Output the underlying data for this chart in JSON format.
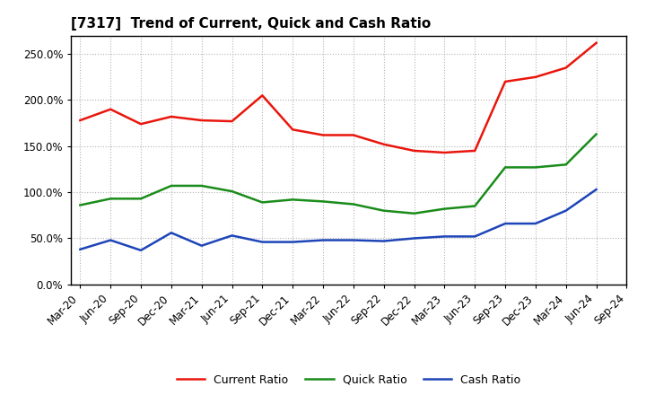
{
  "title": "[7317]  Trend of Current, Quick and Cash Ratio",
  "x_labels": [
    "Mar-20",
    "Jun-20",
    "Sep-20",
    "Dec-20",
    "Mar-21",
    "Jun-21",
    "Sep-21",
    "Dec-21",
    "Mar-22",
    "Jun-22",
    "Sep-22",
    "Dec-22",
    "Mar-23",
    "Jun-23",
    "Sep-23",
    "Dec-23",
    "Mar-24",
    "Jun-24",
    "Sep-24"
  ],
  "current_ratio": [
    178,
    190,
    174,
    182,
    178,
    177,
    205,
    168,
    162,
    162,
    152,
    145,
    143,
    145,
    220,
    225,
    235,
    262,
    null
  ],
  "quick_ratio": [
    86,
    93,
    93,
    107,
    107,
    101,
    89,
    92,
    90,
    87,
    80,
    77,
    82,
    85,
    127,
    127,
    130,
    163,
    null
  ],
  "cash_ratio": [
    38,
    48,
    37,
    56,
    42,
    53,
    46,
    46,
    48,
    48,
    47,
    50,
    52,
    52,
    66,
    66,
    80,
    103,
    null
  ],
  "current_color": "#e8160c",
  "quick_color": "#1a8c1a",
  "cash_color": "#1e45b8",
  "ylim": [
    0,
    270
  ],
  "yticks": [
    0,
    50,
    100,
    150,
    200,
    250
  ],
  "background_color": "#ffffff",
  "plot_bg_color": "#ffffff",
  "grid_color": "#aaaaaa",
  "title_fontsize": 11,
  "tick_fontsize": 8.5,
  "legend_fontsize": 9
}
